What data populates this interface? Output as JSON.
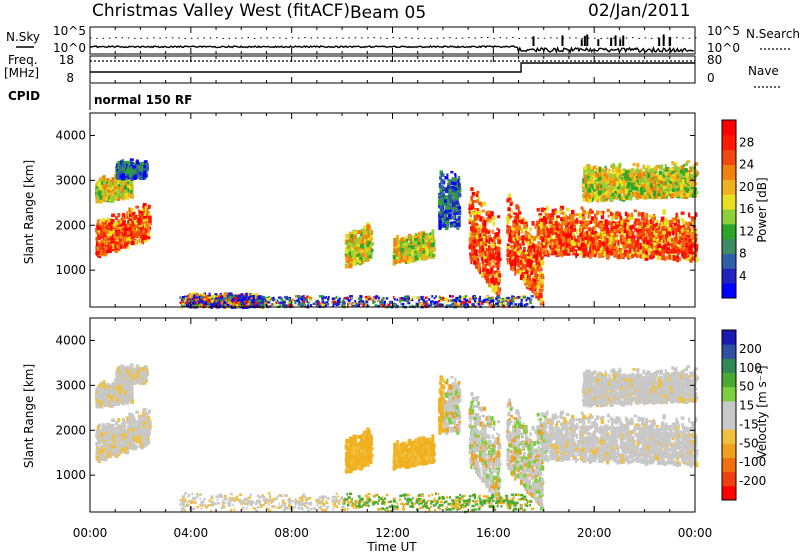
{
  "header": {
    "title": "Christmas Valley West (fitACF)",
    "beam": "Beam 05",
    "date": "02/Jan/2011"
  },
  "noise_panel": {
    "left_label": "N.Sky",
    "right_label": "N.Search",
    "left_ticks": [
      "10^5",
      "10^0"
    ],
    "right_ticks": [
      "10^5",
      "10^0"
    ]
  },
  "freq_panel": {
    "left_label": "Freq.",
    "left_unit": "[MHz]",
    "right_label": "Nave",
    "left_ticks": [
      "18",
      "8"
    ],
    "right_ticks": [
      "80",
      "0"
    ]
  },
  "cpid": {
    "label": "CPID",
    "value": "normal 150 RF"
  },
  "chart_data": [
    {
      "type": "heatmap",
      "name": "power",
      "ylabel": "Slant Range [km]",
      "ylim": [
        180,
        4500
      ],
      "yticks": [
        1000,
        2000,
        3000,
        4000
      ],
      "xlabel": "",
      "xlim": [
        0,
        24
      ],
      "colorbar": {
        "label": "Power [dB]",
        "ticks": [
          "4",
          "8",
          "12",
          "16",
          "20",
          "24",
          "28"
        ],
        "colors": [
          "#0000ff",
          "#2222c0",
          "#2f5fa8",
          "#3c8b62",
          "#2ea62a",
          "#8fcf3a",
          "#e8e020",
          "#f0b020",
          "#f08010",
          "#f04a10",
          "#ff1a00",
          "#ff0000"
        ]
      }
    },
    {
      "type": "heatmap",
      "name": "velocity",
      "ylabel": "Slant Range [km]",
      "ylim": [
        180,
        4500
      ],
      "yticks": [
        1000,
        2000,
        3000,
        4000
      ],
      "xlabel": "Time UT",
      "xlim": [
        0,
        24
      ],
      "xticks": [
        "00:00",
        "04:00",
        "08:00",
        "12:00",
        "16:00",
        "20:00",
        "00:00"
      ],
      "colorbar": {
        "label": "Velocity [m s⁻¹]",
        "ticks": [
          "200",
          "100",
          "50",
          "15",
          "-15",
          "-50",
          "-100",
          "-200"
        ],
        "colors": [
          "#1a1ab0",
          "#3050a0",
          "#2f8a55",
          "#4aaa30",
          "#7cd040",
          "#c8c8c8",
          "#c8c8c8",
          "#f0c040",
          "#f0a020",
          "#f07010",
          "#f04010",
          "#ff0000"
        ]
      }
    }
  ]
}
